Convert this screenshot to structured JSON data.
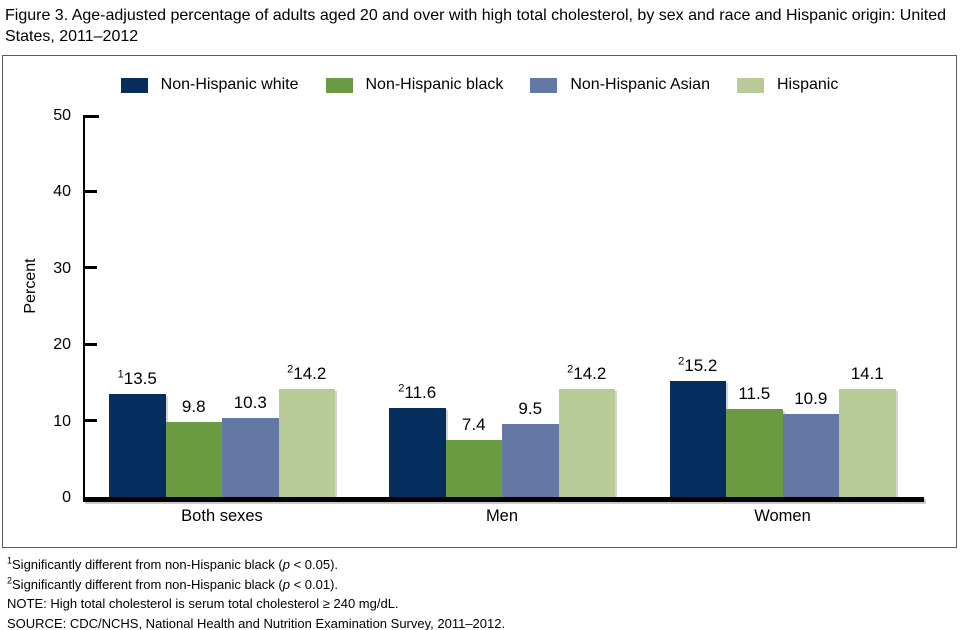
{
  "title": "Figure 3. Age-adjusted percentage of adults aged 20 and over with high total cholesterol, by sex and race and Hispanic origin: United States, 2011–2012",
  "chart_data": {
    "type": "bar",
    "categories": [
      "Both sexes",
      "Men",
      "Women"
    ],
    "series": [
      {
        "name": "Non-Hispanic white",
        "color": "#052d5e",
        "values": [
          13.5,
          11.6,
          15.2
        ],
        "sup": [
          "1",
          "2",
          "2"
        ]
      },
      {
        "name": "Non-Hispanic black",
        "color": "#6a9b40",
        "values": [
          9.8,
          7.4,
          11.5
        ],
        "sup": [
          "",
          "",
          ""
        ]
      },
      {
        "name": "Non-Hispanic Asian",
        "color": "#6478a5",
        "values": [
          10.3,
          9.5,
          10.9
        ],
        "sup": [
          "",
          "",
          ""
        ]
      },
      {
        "name": "Hispanic",
        "color": "#b8ca95",
        "values": [
          14.2,
          14.2,
          14.1
        ],
        "sup": [
          "2",
          "2",
          ""
        ]
      }
    ],
    "title": "",
    "xlabel": "",
    "ylabel": "Percent",
    "ylim": [
      0,
      50
    ],
    "yticks": [
      0,
      10,
      20,
      30,
      40,
      50
    ],
    "grid": false,
    "legend_position": "top"
  },
  "footnotes": [
    {
      "sup": "1",
      "pre": "Significantly different from non-Hispanic black (",
      "italic": "p",
      "post": " < 0.05)."
    },
    {
      "sup": "2",
      "pre": "Significantly different from non-Hispanic black (",
      "italic": "p",
      "post": " < 0.01)."
    },
    {
      "sup": "",
      "pre": "NOTE: High total cholesterol is serum total cholesterol ≥ 240 mg/dL.",
      "italic": "",
      "post": ""
    },
    {
      "sup": "",
      "pre": "SOURCE: CDC/NCHS, National Health and Nutrition Examination Survey, 2011–2012.",
      "italic": "",
      "post": ""
    }
  ]
}
